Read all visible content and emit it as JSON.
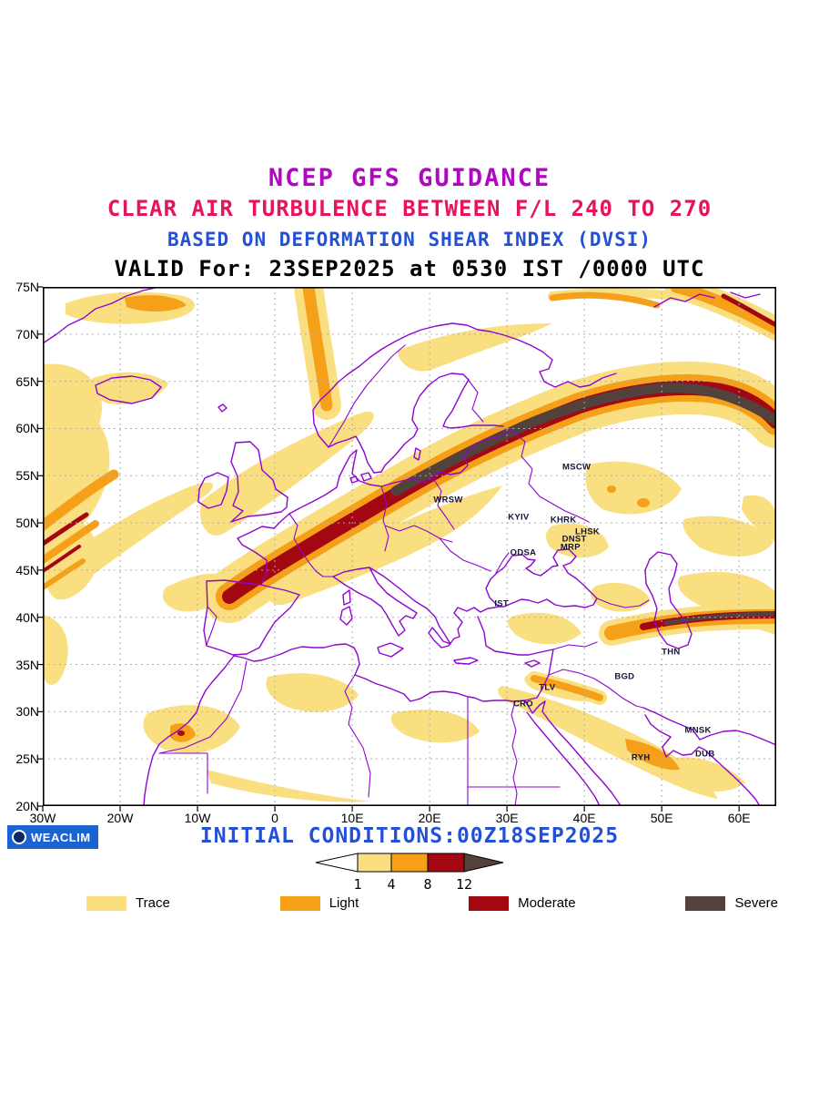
{
  "colors": {
    "trace": "#F9DF80",
    "light": "#F6A019",
    "moderate": "#A30712",
    "severe": "#53413B",
    "coast": "#8E06CE",
    "grid": "#ADADAD",
    "title1": "#B007C0",
    "title2": "#E61557",
    "title3": "#2450D6",
    "text": "#000000",
    "weaclim_bg": "#1B63D1",
    "weaclim_logo": "#0A2A66"
  },
  "titles": {
    "line1": "NCEP GFS GUIDANCE",
    "line2": "CLEAR AIR TURBULENCE BETWEEN F/L 240 TO 270",
    "line3": "BASED ON DEFORMATION SHEAR INDEX (DVSI)",
    "line4": "VALID For: 23SEP2025 at 0530 IST /0000 UTC"
  },
  "map": {
    "lat_ticks": [
      "75N",
      "70N",
      "65N",
      "60N",
      "55N",
      "50N",
      "45N",
      "40N",
      "35N",
      "30N",
      "25N",
      "20N"
    ],
    "lat_values": [
      75,
      70,
      65,
      60,
      55,
      50,
      45,
      40,
      35,
      30,
      25,
      20
    ],
    "lon_ticks": [
      "30W",
      "20W",
      "10W",
      "0",
      "10E",
      "20E",
      "30E",
      "40E",
      "50E",
      "60E"
    ],
    "lon_values": [
      -30,
      -20,
      -10,
      0,
      10,
      20,
      30,
      40,
      50,
      60
    ],
    "cities": [
      {
        "label": "MSCW",
        "lon": 39.0,
        "lat": 55.9
      },
      {
        "label": "WRSW",
        "lon": 22.4,
        "lat": 52.4
      },
      {
        "label": "KYIV",
        "lon": 31.5,
        "lat": 50.6
      },
      {
        "label": "KHRK",
        "lon": 37.3,
        "lat": 50.3
      },
      {
        "label": "LHSK",
        "lon": 40.4,
        "lat": 49.0
      },
      {
        "label": "DNST",
        "lon": 38.7,
        "lat": 48.3
      },
      {
        "label": "MRP",
        "lon": 38.2,
        "lat": 47.4
      },
      {
        "label": "ODSA",
        "lon": 32.1,
        "lat": 46.8
      },
      {
        "label": "IST",
        "lon": 29.3,
        "lat": 41.4
      },
      {
        "label": "THN",
        "lon": 51.2,
        "lat": 36.3
      },
      {
        "label": "BGD",
        "lon": 45.2,
        "lat": 33.7
      },
      {
        "label": "TLV",
        "lon": 35.2,
        "lat": 32.5
      },
      {
        "label": "CRO",
        "lon": 32.1,
        "lat": 30.8
      },
      {
        "label": "MNSK",
        "lon": 54.7,
        "lat": 28.0
      },
      {
        "label": "RYH",
        "lon": 47.3,
        "lat": 25.1
      },
      {
        "label": "DUB",
        "lon": 55.6,
        "lat": 25.5
      }
    ]
  },
  "footer": {
    "initial_conditions": "INITIAL CONDITIONS:00Z18SEP2025",
    "weaclim_label": "WEACLIM"
  },
  "scale": {
    "tick_labels": [
      "1",
      "4",
      "8",
      "12"
    ]
  },
  "legend": {
    "items": [
      {
        "label": "Trace",
        "key": "trace"
      },
      {
        "label": "Light",
        "key": "light"
      },
      {
        "label": "Moderate",
        "key": "moderate"
      },
      {
        "label": "Severe",
        "key": "severe"
      }
    ]
  }
}
